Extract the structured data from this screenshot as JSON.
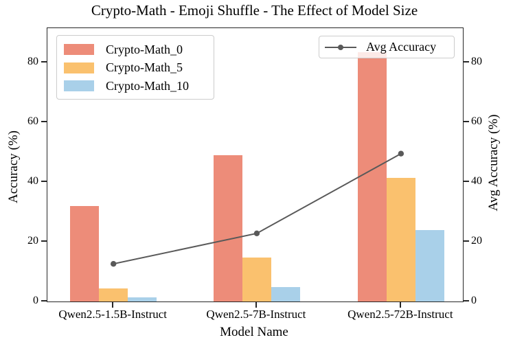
{
  "chart_data": {
    "type": "bar",
    "title": "Crypto-Math - Emoji Shuffle - The Effect of Model Size",
    "xlabel": "Model Name",
    "ylabel_left": "Accuracy (%)",
    "ylabel_right": "Avg Accuracy (%)",
    "ylim": [
      0,
      91.5
    ],
    "yticks": [
      0,
      20,
      40,
      60,
      80
    ],
    "grid": false,
    "legend_positions": {
      "bars": "upper left",
      "line": "upper right"
    },
    "categories": [
      "Qwen2.5-1.5B-Instruct",
      "Qwen2.5-7B-Instruct",
      "Qwen2.5-72B-Instruct"
    ],
    "series": [
      {
        "name": "Crypto-Math_0",
        "type": "bar",
        "color": "#ED8C79",
        "values": [
          32.0,
          48.9,
          83.4
        ]
      },
      {
        "name": "Crypto-Math_5",
        "type": "bar",
        "color": "#FAC16E",
        "values": [
          4.4,
          14.7,
          41.3
        ]
      },
      {
        "name": "Crypto-Math_10",
        "type": "bar",
        "color": "#A9D0E9",
        "values": [
          1.3,
          4.9,
          23.8
        ]
      }
    ],
    "line_series": {
      "name": "Avg Accuracy",
      "color": "#595959",
      "axis": "right",
      "values": [
        12.6,
        22.8,
        49.5
      ]
    }
  }
}
